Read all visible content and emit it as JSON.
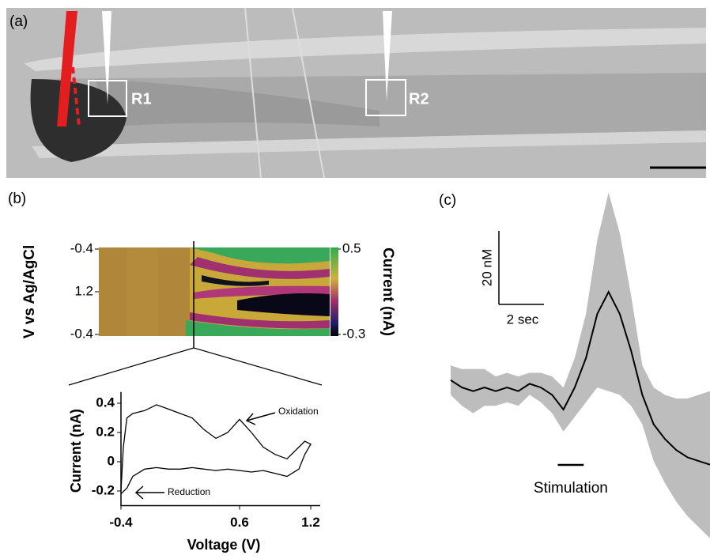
{
  "panels": [
    "(a)",
    "(b)",
    "(c)"
  ],
  "image": {
    "regions": [
      "R1",
      "R2"
    ]
  },
  "chart_data": [
    {
      "type": "heatmap",
      "ylabel": "V vs Ag/AgCl",
      "yticks": [
        -0.4,
        1.2,
        -0.4
      ],
      "colorbar_label": "Current (nA)",
      "clim": [
        -0.3,
        0.5
      ],
      "cticks": [
        0.5,
        -0.3
      ]
    },
    {
      "type": "line",
      "xlabel": "Voltage (V)",
      "ylabel": "Current (nA)",
      "xlim": [
        -0.4,
        1.2
      ],
      "ylim": [
        -0.3,
        0.45
      ],
      "xticks": [
        -0.4,
        0.6,
        1.2
      ],
      "yticks": [
        0.4,
        0.2,
        0,
        -0.2
      ],
      "series": [
        {
          "color": "#000000",
          "x": [
            -0.4,
            -0.38,
            -0.35,
            -0.3,
            -0.2,
            -0.1,
            0,
            0.1,
            0.2,
            0.3,
            0.4,
            0.5,
            0.6,
            0.7,
            0.8,
            0.9,
            1.0,
            1.1,
            1.15,
            1.2,
            1.15,
            1.1,
            1.0,
            0.9,
            0.8,
            0.7,
            0.6,
            0.5,
            0.4,
            0.3,
            0.2,
            0.1,
            0,
            -0.1,
            -0.2,
            -0.3,
            -0.35,
            -0.4
          ],
          "values": [
            -0.2,
            0.1,
            0.3,
            0.33,
            0.35,
            0.39,
            0.36,
            0.33,
            0.3,
            0.22,
            0.16,
            0.2,
            0.29,
            0.2,
            0.1,
            0.05,
            0.02,
            0.1,
            0.14,
            0.12,
            0.05,
            -0.05,
            -0.1,
            -0.08,
            -0.06,
            -0.07,
            -0.06,
            -0.05,
            -0.06,
            -0.05,
            -0.04,
            -0.05,
            -0.05,
            -0.04,
            -0.05,
            -0.1,
            -0.18,
            -0.22
          ]
        }
      ],
      "annotations": [
        "Oxidation",
        "Reduction"
      ]
    },
    {
      "type": "band-line",
      "xlim": [
        0,
        11.5
      ],
      "ylim": [
        -43,
        54
      ],
      "series": [
        {
          "color": "#000000",
          "band_color": "#bdbdbd",
          "x": [
            0,
            0.5,
            1,
            1.5,
            2,
            2.5,
            3,
            3.5,
            4,
            4.5,
            5,
            5.5,
            6,
            6.5,
            7,
            7.5,
            8,
            8.5,
            9,
            9.5,
            10,
            10.5,
            11,
            11.5
          ],
          "values": [
            2,
            0,
            -1,
            0,
            -1,
            0,
            -1,
            1,
            0,
            -2,
            -6,
            0,
            8,
            20,
            26,
            20,
            10,
            -2,
            -10,
            -14,
            -17,
            -19,
            -20,
            -21
          ],
          "error": [
            4,
            5,
            6,
            5,
            4,
            4,
            4,
            3,
            4,
            5,
            6,
            8,
            12,
            20,
            27,
            22,
            15,
            8,
            10,
            12,
            14,
            16,
            18,
            20
          ]
        }
      ],
      "scale_bars": {
        "y": {
          "value": 20,
          "label": "20 nM"
        },
        "x": {
          "value": 2,
          "label": "2 sec"
        }
      },
      "stimulation": {
        "start": 4.75,
        "end": 5.9,
        "label": "Stimulation"
      }
    }
  ]
}
